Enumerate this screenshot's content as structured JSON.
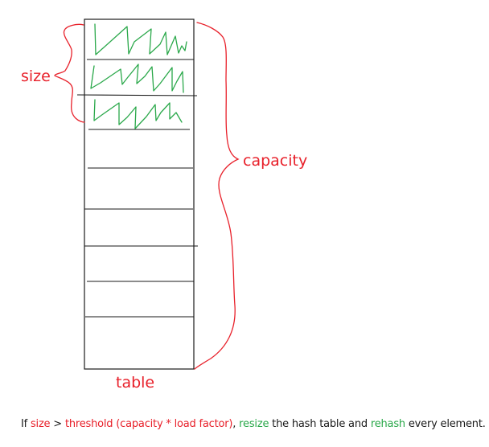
{
  "labels": {
    "size": "size",
    "capacity": "capacity",
    "table": "table"
  },
  "caption": {
    "prefix": "If ",
    "size": "size",
    "gt": " > ",
    "threshold": "threshold (capacity * load factor)",
    "comma": ", ",
    "resize": "resize",
    "mid": " the hash table and ",
    "rehash": "rehash",
    "suffix": " every element."
  },
  "table": {
    "slot_count": 9,
    "filled_slots": 3
  },
  "colors": {
    "red": "#e8202a",
    "green": "#2aa84a",
    "ink": "#1a1a1a"
  }
}
